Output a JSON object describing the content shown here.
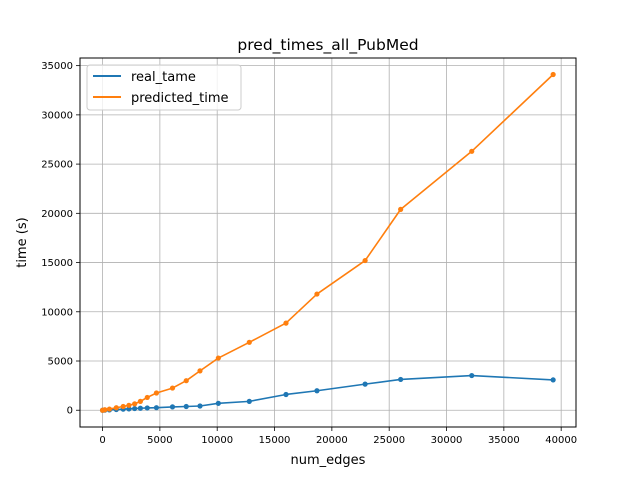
{
  "chart_data": {
    "type": "line",
    "title": "pred_times_all_PubMed",
    "xlabel": "num_edges",
    "ylabel": "time (s)",
    "xlim": [
      -1966,
      41293
    ],
    "ylim": [
      -1703,
      35776
    ],
    "xticks": [
      0,
      5000,
      10000,
      15000,
      20000,
      25000,
      30000,
      35000,
      40000
    ],
    "xtick_labels": [
      "0",
      "5000",
      "10000",
      "15000",
      "20000",
      "25000",
      "30000",
      "35000",
      "40000"
    ],
    "yticks": [
      0,
      5000,
      10000,
      15000,
      20000,
      25000,
      30000,
      35000
    ],
    "ytick_labels": [
      "0",
      "5000",
      "10000",
      "15000",
      "20000",
      "25000",
      "30000",
      "35000"
    ],
    "grid": true,
    "legend_position": "top-left",
    "series": [
      {
        "name": "real_tame",
        "color": "#1f77b4",
        "x": [
          0,
          200,
          600,
          1200,
          1800,
          2300,
          2800,
          3300,
          3900,
          4700,
          6100,
          7300,
          8500,
          10100,
          12800,
          16000,
          18700,
          22900,
          26000,
          32200,
          39300
        ],
        "y": [
          0,
          10,
          30,
          70,
          110,
          140,
          170,
          200,
          230,
          260,
          340,
          380,
          430,
          700,
          900,
          1600,
          1980,
          2650,
          3130,
          3520,
          3080
        ]
      },
      {
        "name": "predicted_time",
        "color": "#ff7f0e",
        "x": [
          0,
          200,
          600,
          1200,
          1800,
          2300,
          2800,
          3300,
          3900,
          4700,
          6100,
          7300,
          8500,
          10100,
          12800,
          16000,
          18700,
          22900,
          26000,
          32200,
          39300
        ],
        "y": [
          0,
          50,
          120,
          250,
          380,
          500,
          650,
          900,
          1300,
          1750,
          2250,
          3000,
          4000,
          5300,
          6900,
          8850,
          11800,
          15200,
          20400,
          26300,
          34100
        ]
      }
    ]
  }
}
